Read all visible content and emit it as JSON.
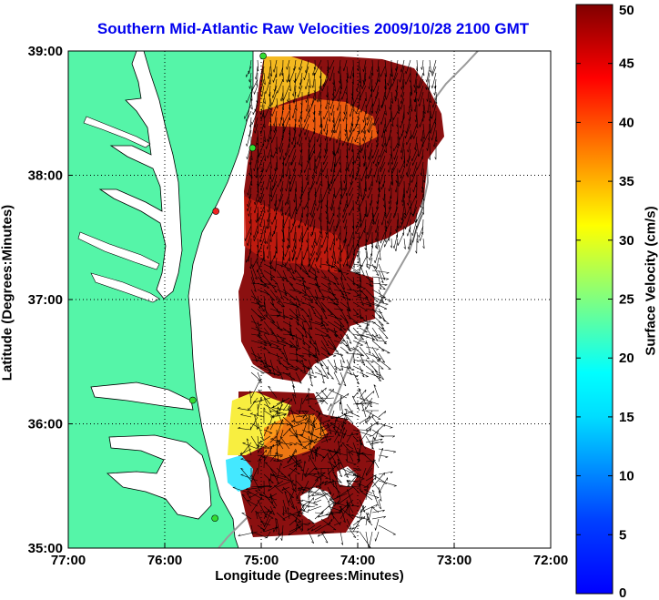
{
  "title": "Southern Mid-Atlantic Raw Velocities 2009/10/28 2100 GMT",
  "x_axis": {
    "label": "Longitude (Degrees:Minutes)",
    "ticks": [
      "77:00",
      "76:00",
      "75:00",
      "74:00",
      "73:00",
      "72:00"
    ],
    "range": [
      -77,
      -72
    ]
  },
  "y_axis": {
    "label": "Latitude (Degrees:Minutes)",
    "ticks": [
      "39:00",
      "38:00",
      "37:00",
      "36:00",
      "35:00"
    ],
    "range": [
      35,
      39
    ]
  },
  "colorbar": {
    "label": "Surface Velocity (cm/s)",
    "ticks": [
      "0",
      "5",
      "10",
      "15",
      "20",
      "25",
      "30",
      "35",
      "40",
      "45",
      "50"
    ],
    "range": [
      0,
      50
    ],
    "colormap": "jet"
  },
  "colors": {
    "land": "#55f5a8",
    "water": "#ffffff",
    "title": "#0000ee",
    "station_green": "#33dd33",
    "station_red": "#ee2222"
  },
  "map_data": {
    "grid": "dotted",
    "stations": [
      {
        "lon": -74.98,
        "lat": 38.96,
        "status": "green"
      },
      {
        "lon": -75.09,
        "lat": 38.22,
        "status": "green"
      },
      {
        "lon": -75.47,
        "lat": 37.71,
        "status": "red"
      },
      {
        "lon": -75.71,
        "lat": 36.19,
        "status": "green"
      },
      {
        "lon": -75.48,
        "lat": 35.24,
        "status": "green"
      }
    ]
  }
}
